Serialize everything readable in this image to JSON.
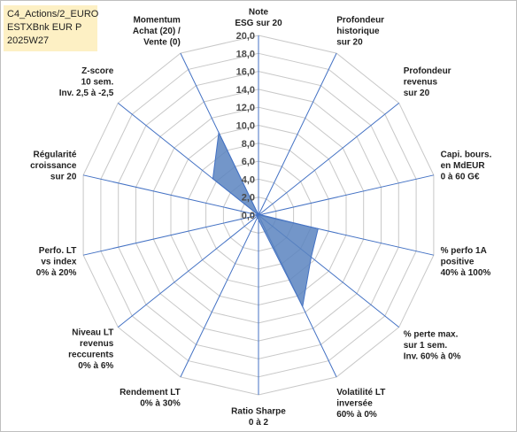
{
  "info": {
    "line1": "C4_Actions/2_EURO",
    "line2": "ESTXBnk EUR P",
    "line3": "2025W27"
  },
  "colors": {
    "fill": "#5b84bf",
    "stroke": "#4472c4",
    "grid": "#c8c8c8",
    "spoke": "#4472c4",
    "info_bg": "#fdf0c4"
  },
  "chart_data": {
    "type": "radar",
    "title": "",
    "range": [
      0,
      20
    ],
    "ticks": [
      "0,0",
      "2,0",
      "4,0",
      "6,0",
      "8,0",
      "10,0",
      "12,0",
      "14,0",
      "16,0",
      "18,0",
      "20,0"
    ],
    "grid": true,
    "legend": "none",
    "axes": [
      [
        "Note",
        "ESG sur 20"
      ],
      [
        "Profondeur",
        "historique",
        "sur 20"
      ],
      [
        "Profondeur",
        "revenus",
        "sur 20"
      ],
      [
        "Capi. bours.",
        "en MdEUR",
        "0 à 60 G€"
      ],
      [
        "% perfo 1A",
        "positive",
        "40% à 100%"
      ],
      [
        "% perte max.",
        "sur 1 sem.",
        "Inv. 60% à 0%"
      ],
      [
        "Volatilité LT",
        "inversée",
        "60% à 0%"
      ],
      [
        "Ratio Sharpe",
        "0 à 2"
      ],
      [
        "Rendement LT",
        "0% à 30%"
      ],
      [
        "Niveau LT",
        "revenus",
        "reccurents",
        "0% à 6%"
      ],
      [
        "Perfo. LT",
        "vs index",
        "0% à 20%"
      ],
      [
        "Régularité",
        "croissance",
        "sur 20"
      ],
      [
        "Z-score",
        "10 sem.",
        "Inv. 2,5 à -2,5"
      ],
      [
        "Momentum",
        "Achat (20) /",
        "Vente (0)"
      ]
    ],
    "values": [
      0,
      0,
      0,
      0.2,
      6.8,
      7.5,
      11.3,
      0.5,
      0.3,
      0,
      0,
      0,
      6.5,
      10.2
    ]
  }
}
